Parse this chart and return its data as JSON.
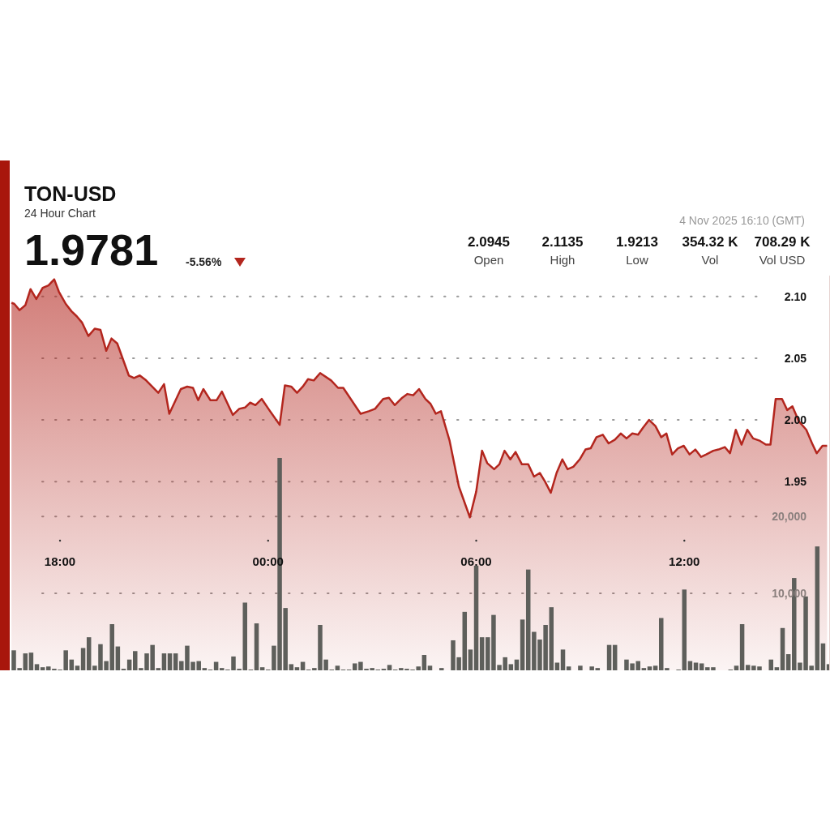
{
  "chart_data": {
    "type": "area",
    "title": "TON-USD",
    "subtitle": "24 Hour Chart",
    "annotations": [
      "1.9781",
      "-5.56%",
      "4 Nov 2025 16:10 (GMT)",
      "2.0945",
      "Open",
      "2.1135",
      "High",
      "1.9213",
      "Low",
      "354.32 K",
      "Vol",
      "708.29 K",
      "Vol USD"
    ],
    "xlim": [
      "2025-11-03T16:33",
      "2025-11-04T16:12"
    ],
    "xticks": [
      {
        "value": "2025-11-03T18:00",
        "label": "18:00"
      },
      {
        "value": "2025-11-04T00:00",
        "label": "00:00"
      },
      {
        "value": "2025-11-04T06:00",
        "label": "06:00"
      },
      {
        "value": "2025-11-04T12:00",
        "label": "12:00"
      }
    ],
    "ylim": [
      1.797,
      2.117
    ],
    "yticks": [
      {
        "value": 1.95,
        "label": "1.95"
      },
      {
        "value": 2,
        "label": "2.00"
      },
      {
        "value": 2.05,
        "label": "2.05"
      },
      {
        "value": 2.1,
        "label": "2.10"
      }
    ],
    "y2lim": [
      0,
      51300
    ],
    "y2ticks": [
      {
        "value": 10000,
        "label": "10,000"
      },
      {
        "value": 20000,
        "label": "20,000"
      }
    ],
    "grid": true,
    "series": [
      {
        "color": "#b3261e",
        "x": [
          "2025-11-03T16:36",
          "2025-11-03T16:41",
          "2025-11-03T16:50",
          "2025-11-03T17:00",
          "2025-11-03T17:09",
          "2025-11-03T17:19",
          "2025-11-03T17:30",
          "2025-11-03T17:40",
          "2025-11-03T17:50",
          "2025-11-03T17:58",
          "2025-11-03T18:10",
          "2025-11-03T18:20",
          "2025-11-03T18:29",
          "2025-11-03T18:38",
          "2025-11-03T18:49",
          "2025-11-03T19:00",
          "2025-11-03T19:10",
          "2025-11-03T19:20",
          "2025-11-03T19:29",
          "2025-11-03T19:39",
          "2025-11-03T19:59",
          "2025-11-03T20:08",
          "2025-11-03T20:18",
          "2025-11-03T20:29",
          "2025-11-03T20:50",
          "2025-11-03T21:00",
          "2025-11-03T21:09",
          "2025-11-03T21:29",
          "2025-11-03T21:40",
          "2025-11-03T21:50",
          "2025-11-03T21:59",
          "2025-11-03T22:08",
          "2025-11-03T22:20",
          "2025-11-03T22:31",
          "2025-11-03T22:40",
          "2025-11-03T22:59",
          "2025-11-03T23:10",
          "2025-11-03T23:20",
          "2025-11-03T23:29",
          "2025-11-03T23:38",
          "2025-11-03T23:49",
          "2025-11-04T00:02",
          "2025-11-04T00:20",
          "2025-11-04T00:29",
          "2025-11-04T00:40",
          "2025-11-04T00:50",
          "2025-11-04T01:00",
          "2025-11-04T01:09",
          "2025-11-04T01:19",
          "2025-11-04T01:30",
          "2025-11-04T01:49",
          "2025-11-04T02:01",
          "2025-11-04T02:10",
          "2025-11-04T02:40",
          "2025-11-04T02:54",
          "2025-11-04T03:05",
          "2025-11-04T03:19",
          "2025-11-04T03:29",
          "2025-11-04T03:39",
          "2025-11-04T03:52",
          "2025-11-04T04:01",
          "2025-11-04T04:11",
          "2025-11-04T04:21",
          "2025-11-04T04:32",
          "2025-11-04T04:41",
          "2025-11-04T04:50",
          "2025-11-04T04:59",
          "2025-11-04T05:14",
          "2025-11-04T05:30",
          "2025-11-04T05:49",
          "2025-11-04T06:00",
          "2025-11-04T06:10",
          "2025-11-04T06:19",
          "2025-11-04T06:31",
          "2025-11-04T06:40",
          "2025-11-04T06:49",
          "2025-11-04T06:59",
          "2025-11-04T07:08",
          "2025-11-04T07:19",
          "2025-11-04T07:30",
          "2025-11-04T07:40",
          "2025-11-04T07:50",
          "2025-11-04T07:59",
          "2025-11-04T08:09",
          "2025-11-04T08:19",
          "2025-11-04T08:29",
          "2025-11-04T08:38",
          "2025-11-04T08:48",
          "2025-11-04T08:59",
          "2025-11-04T09:09",
          "2025-11-04T09:18",
          "2025-11-04T09:28",
          "2025-11-04T09:39",
          "2025-11-04T09:49",
          "2025-11-04T10:00",
          "2025-11-04T10:10",
          "2025-11-04T10:20",
          "2025-11-04T10:30",
          "2025-11-04T10:40",
          "2025-11-04T10:49",
          "2025-11-04T10:59",
          "2025-11-04T11:10",
          "2025-11-04T11:20",
          "2025-11-04T11:29",
          "2025-11-04T11:39",
          "2025-11-04T11:49",
          "2025-11-04T11:59",
          "2025-11-04T12:09",
          "2025-11-04T12:19",
          "2025-11-04T12:29",
          "2025-11-04T12:38",
          "2025-11-04T12:50",
          "2025-11-04T12:59",
          "2025-11-04T13:10",
          "2025-11-04T13:19",
          "2025-11-04T13:29",
          "2025-11-04T13:39",
          "2025-11-04T13:49",
          "2025-11-04T13:59",
          "2025-11-04T14:11",
          "2025-11-04T14:21",
          "2025-11-04T14:29",
          "2025-11-04T14:38",
          "2025-11-04T14:49",
          "2025-11-04T14:58",
          "2025-11-04T15:07",
          "2025-11-04T15:18",
          "2025-11-04T15:31",
          "2025-11-04T15:41",
          "2025-11-04T15:49",
          "2025-11-04T15:59",
          "2025-11-04T16:07"
        ],
        "values": [
          2.095,
          2.094,
          2.089,
          2.093,
          2.106,
          2.098,
          2.107,
          2.109,
          2.114,
          2.104,
          2.094,
          2.088,
          2.084,
          2.079,
          2.068,
          2.074,
          2.073,
          2.056,
          2.066,
          2.062,
          2.036,
          2.034,
          2.036,
          2.032,
          2.022,
          2.029,
          2.005,
          2.025,
          2.027,
          2.026,
          2.016,
          2.025,
          2.016,
          2.016,
          2.023,
          2.004,
          2.009,
          2.01,
          2.014,
          2.012,
          2.017,
          2.008,
          1.996,
          2.028,
          2.027,
          2.022,
          2.027,
          2.033,
          2.032,
          2.038,
          2.032,
          2.026,
          2.026,
          2.005,
          2.007,
          2.009,
          2.017,
          2.018,
          2.012,
          2.018,
          2.021,
          2.02,
          2.025,
          2.017,
          2.013,
          2.005,
          2.007,
          1.983,
          1.946,
          1.921,
          1.942,
          1.975,
          1.965,
          1.96,
          1.964,
          1.975,
          1.968,
          1.974,
          1.964,
          1.964,
          1.954,
          1.957,
          1.95,
          1.941,
          1.957,
          1.968,
          1.96,
          1.962,
          1.968,
          1.976,
          1.977,
          1.986,
          1.988,
          1.981,
          1.984,
          1.989,
          1.985,
          1.989,
          1.988,
          1.994,
          2.0,
          1.995,
          1.986,
          1.989,
          1.972,
          1.977,
          1.979,
          1.972,
          1.976,
          1.97,
          1.972,
          1.975,
          1.976,
          1.978,
          1.973,
          1.992,
          1.98,
          1.992,
          1.985,
          1.983,
          1.98,
          1.98,
          2.017,
          2.017,
          2.008,
          2.011,
          1.999,
          1.992,
          1.981,
          1.973,
          1.979,
          1.979
        ]
      },
      {
        "type": "bar",
        "axis": "y2",
        "color": "#5e5f5b",
        "x": [
          "2025-11-03T16:40",
          "2025-11-03T16:50",
          "2025-11-03T17:00",
          "2025-11-03T17:10",
          "2025-11-03T17:20",
          "2025-11-03T17:30",
          "2025-11-03T17:40",
          "2025-11-03T17:50",
          "2025-11-03T18:00",
          "2025-11-03T18:10",
          "2025-11-03T18:20",
          "2025-11-03T18:30",
          "2025-11-03T18:40",
          "2025-11-03T18:50",
          "2025-11-03T19:00",
          "2025-11-03T19:10",
          "2025-11-03T19:20",
          "2025-11-03T19:30",
          "2025-11-03T19:40",
          "2025-11-03T19:50",
          "2025-11-03T20:00",
          "2025-11-03T20:10",
          "2025-11-03T20:20",
          "2025-11-03T20:30",
          "2025-11-03T20:40",
          "2025-11-03T20:50",
          "2025-11-03T21:00",
          "2025-11-03T21:10",
          "2025-11-03T21:20",
          "2025-11-03T21:30",
          "2025-11-03T21:40",
          "2025-11-03T21:50",
          "2025-11-03T22:00",
          "2025-11-03T22:10",
          "2025-11-03T22:20",
          "2025-11-03T22:30",
          "2025-11-03T22:40",
          "2025-11-03T22:50",
          "2025-11-03T23:00",
          "2025-11-03T23:10",
          "2025-11-03T23:20",
          "2025-11-03T23:30",
          "2025-11-03T23:40",
          "2025-11-03T23:50",
          "2025-11-04T00:00",
          "2025-11-04T00:10",
          "2025-11-04T00:20",
          "2025-11-04T00:30",
          "2025-11-04T00:40",
          "2025-11-04T00:50",
          "2025-11-04T01:00",
          "2025-11-04T01:10",
          "2025-11-04T01:20",
          "2025-11-04T01:30",
          "2025-11-04T01:40",
          "2025-11-04T01:50",
          "2025-11-04T02:00",
          "2025-11-04T02:10",
          "2025-11-04T02:20",
          "2025-11-04T02:30",
          "2025-11-04T02:40",
          "2025-11-04T02:50",
          "2025-11-04T03:00",
          "2025-11-04T03:10",
          "2025-11-04T03:20",
          "2025-11-04T03:30",
          "2025-11-04T03:40",
          "2025-11-04T03:50",
          "2025-11-04T04:00",
          "2025-11-04T04:10",
          "2025-11-04T04:20",
          "2025-11-04T04:30",
          "2025-11-04T04:40",
          "2025-11-04T04:50",
          "2025-11-04T05:00",
          "2025-11-04T05:10",
          "2025-11-04T05:20",
          "2025-11-04T05:30",
          "2025-11-04T05:40",
          "2025-11-04T05:50",
          "2025-11-04T06:00",
          "2025-11-04T06:10",
          "2025-11-04T06:20",
          "2025-11-04T06:30",
          "2025-11-04T06:40",
          "2025-11-04T06:50",
          "2025-11-04T07:00",
          "2025-11-04T07:10",
          "2025-11-04T07:20",
          "2025-11-04T07:30",
          "2025-11-04T07:40",
          "2025-11-04T07:50",
          "2025-11-04T08:00",
          "2025-11-04T08:10",
          "2025-11-04T08:20",
          "2025-11-04T08:30",
          "2025-11-04T08:40",
          "2025-11-04T08:50",
          "2025-11-04T09:00",
          "2025-11-04T09:10",
          "2025-11-04T09:20",
          "2025-11-04T09:30",
          "2025-11-04T09:40",
          "2025-11-04T09:50",
          "2025-11-04T10:00",
          "2025-11-04T10:10",
          "2025-11-04T10:20",
          "2025-11-04T10:30",
          "2025-11-04T10:40",
          "2025-11-04T10:50",
          "2025-11-04T11:00",
          "2025-11-04T11:10",
          "2025-11-04T11:20",
          "2025-11-04T11:30",
          "2025-11-04T11:40",
          "2025-11-04T11:50",
          "2025-11-04T12:00",
          "2025-11-04T12:10",
          "2025-11-04T12:20",
          "2025-11-04T12:30",
          "2025-11-04T12:40",
          "2025-11-04T12:50",
          "2025-11-04T13:00",
          "2025-11-04T13:10",
          "2025-11-04T13:20",
          "2025-11-04T13:30",
          "2025-11-04T13:40",
          "2025-11-04T13:50",
          "2025-11-04T14:00",
          "2025-11-04T14:10",
          "2025-11-04T14:20",
          "2025-11-04T14:30",
          "2025-11-04T14:40",
          "2025-11-04T14:50",
          "2025-11-04T15:00",
          "2025-11-04T15:10",
          "2025-11-04T15:20",
          "2025-11-04T15:30",
          "2025-11-04T15:40",
          "2025-11-04T15:50",
          "2025-11-04T16:00",
          "2025-11-04T16:10"
        ],
        "values": [
          2600,
          300,
          2200,
          2300,
          800,
          400,
          500,
          200,
          100,
          2600,
          1400,
          600,
          2900,
          4300,
          600,
          3400,
          1200,
          6000,
          3100,
          200,
          1400,
          2500,
          300,
          2200,
          3300,
          300,
          2200,
          2200,
          2200,
          1200,
          3200,
          1100,
          1200,
          300,
          100,
          1100,
          300,
          100,
          1800,
          200,
          8800,
          100,
          6100,
          400,
          100,
          3200,
          27600,
          8100,
          800,
          400,
          1100,
          100,
          300,
          5900,
          1400,
          100,
          600,
          100,
          100,
          900,
          1100,
          200,
          300,
          100,
          200,
          700,
          100,
          300,
          200,
          100,
          500,
          2000,
          600,
          null,
          300,
          null,
          3900,
          1700,
          7600,
          2700,
          13600,
          4300,
          4300,
          7200,
          700,
          1700,
          800,
          1400,
          6600,
          13100,
          5000,
          4000,
          5900,
          8200,
          1000,
          2700,
          500,
          null,
          600,
          null,
          500,
          300,
          null,
          3300,
          3300,
          null,
          1400,
          900,
          1200,
          300,
          500,
          600,
          6800,
          300,
          null,
          100,
          10500,
          1200,
          1000,
          900,
          400,
          400,
          null,
          null,
          100,
          600,
          6000,
          700,
          600,
          500,
          null,
          1400,
          400,
          5500,
          2100,
          12000,
          1000,
          9600,
          600,
          16100,
          3500,
          800
        ]
      }
    ]
  }
}
